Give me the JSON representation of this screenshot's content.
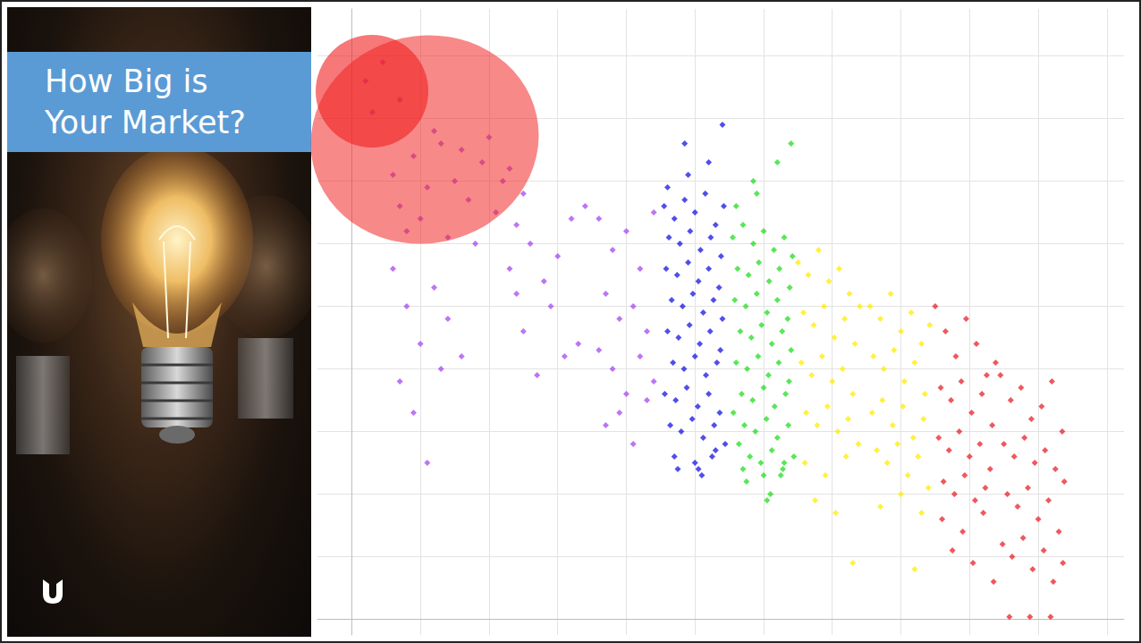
{
  "chart_data": {
    "type": "scatter",
    "title": "How Big is Your Market?",
    "xlim": [
      -0.5,
      11.25
    ],
    "xticks": [
      0,
      1,
      2,
      3,
      4,
      5,
      6,
      7,
      8,
      9,
      10,
      11
    ],
    "ylim": [
      -0.25,
      9.75
    ],
    "yticks": [
      0,
      1,
      2,
      3,
      4,
      5,
      6,
      7,
      8,
      9
    ],
    "grid": true,
    "tick_labels": false,
    "marker": "diamond",
    "series": [
      {
        "color": "#a547f0",
        "x": [
          0.6,
          0.7,
          0.9,
          1.1,
          1.3,
          1.0,
          1.5,
          1.7,
          1.9,
          2.1,
          2.3,
          2.5,
          0.8,
          1.2,
          1.6,
          2.0,
          2.4,
          1.4,
          1.8,
          2.2,
          0.6,
          0.8,
          1.0,
          1.2,
          1.4,
          0.7,
          1.6,
          0.9,
          1.1,
          1.3,
          2.3,
          2.6,
          2.9,
          3.2,
          2.5,
          2.8,
          3.1,
          3.4,
          2.7,
          3.0,
          3.6,
          3.8,
          4.0,
          4.2,
          4.4,
          3.7,
          3.9,
          4.1,
          4.3,
          3.6,
          3.8,
          4.0,
          4.2,
          4.4,
          3.7,
          3.9,
          4.1,
          4.3,
          2.4,
          3.3,
          0.2,
          0.45,
          0.7,
          0.3
        ],
        "values": [
          7.1,
          6.6,
          7.4,
          6.9,
          7.6,
          6.4,
          7.0,
          6.7,
          7.3,
          6.5,
          7.2,
          6.8,
          6.2,
          7.8,
          7.5,
          7.7,
          6.3,
          6.1,
          6.0,
          7.0,
          5.6,
          5.0,
          4.4,
          5.3,
          4.8,
          3.8,
          4.2,
          3.3,
          2.5,
          4.0,
          5.6,
          6.0,
          5.0,
          6.4,
          4.6,
          5.4,
          4.2,
          6.6,
          3.9,
          5.8,
          6.4,
          5.9,
          6.2,
          5.6,
          6.5,
          5.2,
          4.8,
          5.0,
          4.6,
          4.3,
          4.0,
          3.6,
          4.2,
          3.8,
          3.1,
          3.3,
          2.8,
          3.5,
          5.2,
          4.4,
          8.6,
          8.9,
          8.3,
          8.1
        ]
      },
      {
        "color": "#1414e6",
        "x": [
          4.55,
          4.7,
          4.85,
          5.0,
          5.15,
          5.3,
          5.42,
          4.62,
          4.78,
          4.93,
          5.08,
          5.23,
          5.38,
          4.58,
          4.74,
          4.9,
          5.05,
          5.2,
          5.35,
          4.66,
          4.82,
          4.97,
          5.12,
          5.27,
          5.4,
          4.6,
          4.76,
          4.92,
          5.07,
          5.22,
          5.37,
          4.68,
          4.84,
          5.0,
          5.16,
          5.32,
          4.56,
          4.72,
          4.88,
          5.04,
          5.2,
          5.36,
          4.64,
          4.8,
          4.96,
          5.12,
          5.28,
          5.44,
          4.7,
          5.0,
          5.3,
          4.9,
          5.2,
          4.6,
          5.4,
          4.75,
          5.1,
          5.25,
          4.85,
          5.05
        ],
        "values": [
          6.6,
          6.4,
          6.7,
          6.5,
          6.8,
          6.3,
          6.6,
          6.1,
          6.0,
          6.2,
          5.9,
          6.1,
          5.8,
          5.6,
          5.5,
          5.7,
          5.4,
          5.6,
          5.3,
          5.1,
          5.0,
          5.2,
          4.9,
          5.1,
          4.8,
          4.6,
          4.5,
          4.7,
          4.4,
          4.6,
          4.3,
          4.1,
          4.0,
          4.2,
          3.9,
          4.1,
          3.6,
          3.5,
          3.7,
          3.4,
          3.6,
          3.3,
          3.1,
          3.0,
          3.2,
          2.9,
          3.1,
          2.8,
          2.6,
          2.5,
          2.7,
          7.1,
          7.3,
          6.9,
          7.9,
          2.4,
          2.3,
          2.6,
          7.6,
          2.4
        ]
      },
      {
        "color": "#22dd22",
        "x": [
          5.55,
          5.7,
          5.85,
          6.0,
          6.15,
          6.3,
          6.42,
          5.62,
          5.78,
          5.93,
          6.08,
          6.23,
          6.38,
          5.58,
          5.74,
          5.9,
          6.05,
          6.2,
          6.35,
          5.66,
          5.82,
          5.97,
          6.12,
          6.27,
          6.4,
          5.6,
          5.76,
          5.92,
          6.07,
          6.22,
          6.37,
          5.68,
          5.84,
          6.0,
          6.16,
          6.32,
          5.56,
          5.72,
          5.88,
          6.04,
          6.2,
          6.36,
          5.64,
          5.8,
          5.96,
          6.12,
          6.28,
          6.44,
          5.7,
          6.0,
          6.3,
          5.9,
          6.2,
          5.6,
          6.4,
          5.75,
          6.1,
          6.25,
          5.85,
          6.05
        ],
        "values": [
          6.1,
          6.3,
          6.0,
          6.2,
          5.9,
          6.1,
          5.8,
          5.6,
          5.5,
          5.7,
          5.4,
          5.6,
          5.3,
          5.1,
          5.0,
          5.2,
          4.9,
          5.1,
          4.8,
          4.6,
          4.5,
          4.7,
          4.4,
          4.6,
          4.3,
          4.1,
          4.0,
          4.2,
          3.9,
          4.1,
          3.8,
          3.6,
          3.5,
          3.7,
          3.4,
          3.6,
          3.3,
          3.1,
          3.0,
          3.2,
          2.9,
          3.1,
          2.8,
          2.6,
          2.5,
          2.7,
          2.4,
          2.6,
          2.4,
          2.3,
          2.5,
          6.8,
          7.3,
          6.6,
          7.6,
          2.2,
          2.0,
          2.3,
          7.0,
          1.9
        ]
      },
      {
        "color": "#ffec00",
        "x": [
          6.5,
          6.65,
          6.8,
          6.95,
          7.1,
          7.25,
          7.4,
          6.58,
          6.73,
          6.88,
          7.03,
          7.18,
          7.33,
          6.55,
          6.7,
          6.85,
          7.0,
          7.15,
          7.3,
          6.62,
          6.78,
          6.93,
          7.08,
          7.23,
          7.38,
          6.6,
          6.9,
          7.2,
          6.75,
          7.05,
          7.55,
          7.7,
          7.85,
          8.0,
          8.15,
          8.3,
          8.42,
          7.6,
          7.75,
          7.9,
          8.05,
          8.2,
          8.35,
          7.58,
          7.73,
          7.88,
          8.03,
          8.18,
          8.33,
          7.65,
          7.8,
          7.95,
          8.1,
          8.25,
          8.4,
          7.7,
          8.0,
          8.3,
          7.3,
          8.2
        ],
        "values": [
          5.7,
          5.5,
          5.9,
          5.4,
          5.6,
          5.2,
          5.0,
          4.9,
          4.7,
          5.0,
          4.5,
          4.8,
          4.4,
          4.1,
          3.9,
          4.2,
          3.8,
          4.0,
          3.6,
          3.3,
          3.1,
          3.4,
          3.0,
          3.2,
          2.8,
          2.5,
          2.3,
          2.6,
          1.9,
          1.7,
          5.0,
          4.8,
          5.2,
          4.6,
          4.9,
          4.4,
          4.7,
          4.2,
          4.0,
          4.3,
          3.8,
          4.1,
          3.6,
          3.3,
          3.5,
          3.1,
          3.4,
          2.9,
          3.2,
          2.7,
          2.5,
          2.8,
          2.3,
          2.6,
          2.1,
          1.8,
          2.0,
          1.7,
          0.9,
          0.8
        ]
      },
      {
        "color": "#e8202a",
        "x": [
          8.5,
          8.65,
          8.8,
          8.95,
          9.1,
          9.25,
          9.38,
          8.58,
          8.73,
          8.88,
          9.03,
          9.18,
          9.33,
          8.55,
          8.7,
          8.85,
          9.0,
          9.15,
          9.3,
          8.62,
          8.78,
          8.93,
          9.08,
          9.23,
          8.6,
          8.9,
          9.2,
          8.75,
          9.05,
          9.35,
          9.45,
          9.6,
          9.75,
          9.9,
          10.05,
          10.2,
          10.35,
          9.5,
          9.65,
          9.8,
          9.95,
          10.1,
          10.25,
          10.38,
          9.55,
          9.7,
          9.85,
          10.0,
          10.15,
          10.3,
          9.48,
          9.62,
          9.78,
          9.92,
          10.08,
          10.22,
          10.36,
          9.58,
          9.88,
          10.18
        ],
        "values": [
          5.0,
          4.6,
          4.2,
          4.8,
          4.4,
          3.9,
          4.1,
          3.7,
          3.5,
          3.8,
          3.3,
          3.6,
          3.1,
          2.9,
          2.7,
          3.0,
          2.6,
          2.8,
          2.4,
          2.2,
          2.0,
          2.3,
          1.9,
          2.1,
          1.6,
          1.4,
          1.7,
          1.1,
          0.9,
          0.6,
          3.9,
          3.5,
          3.7,
          3.2,
          3.4,
          3.8,
          3.0,
          2.8,
          2.6,
          2.9,
          2.5,
          2.7,
          2.4,
          2.2,
          2.0,
          1.8,
          2.1,
          1.6,
          1.9,
          1.4,
          1.2,
          1.0,
          1.3,
          0.8,
          1.1,
          0.6,
          0.9,
          0.04,
          0.04,
          0.04
        ]
      }
    ]
  }
}
